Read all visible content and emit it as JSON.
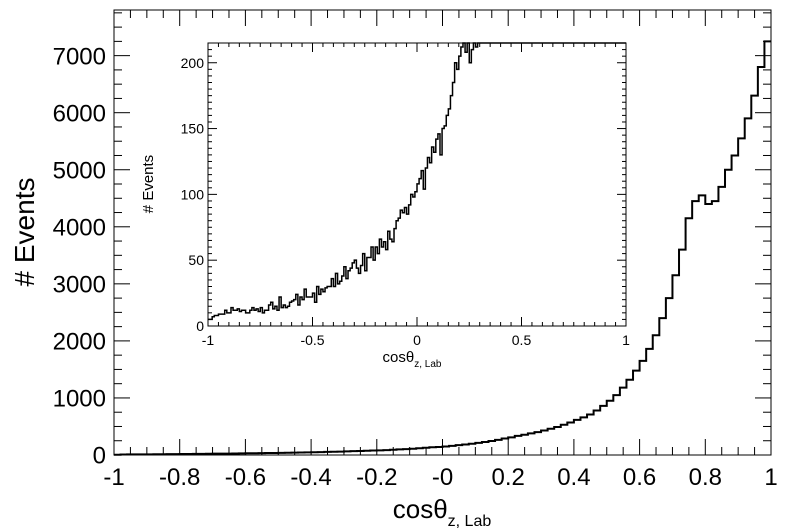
{
  "chart_data": [
    {
      "type": "histogram",
      "xlabel_main": "cosθ",
      "xlabel_sub": "z, Lab",
      "ylabel": "# Events",
      "xlim": [
        -1,
        1
      ],
      "ylim": [
        0,
        7800
      ],
      "x_ticks": [
        -1,
        -0.8,
        -0.6,
        -0.4,
        -0.2,
        0,
        0.2,
        0.4,
        0.6,
        0.8,
        1
      ],
      "x_tick_labels": [
        "-1",
        "-0.8",
        "-0.6",
        "-0.4",
        "-0.2",
        "-0",
        "0.2",
        "0.4",
        "0.6",
        "0.8",
        "1"
      ],
      "y_ticks": [
        0,
        1000,
        2000,
        3000,
        4000,
        5000,
        6000,
        7000
      ],
      "y_tick_labels": [
        "0",
        "1000",
        "2000",
        "3000",
        "4000",
        "5000",
        "6000",
        "7000"
      ],
      "bin_centers": [
        -0.99,
        -0.97,
        -0.95,
        -0.93,
        -0.91,
        -0.89,
        -0.87,
        -0.85,
        -0.83,
        -0.81,
        -0.79,
        -0.77,
        -0.75,
        -0.73,
        -0.71,
        -0.69,
        -0.67,
        -0.65,
        -0.63,
        -0.61,
        -0.59,
        -0.57,
        -0.55,
        -0.53,
        -0.51,
        -0.49,
        -0.47,
        -0.45,
        -0.43,
        -0.41,
        -0.39,
        -0.37,
        -0.35,
        -0.33,
        -0.31,
        -0.29,
        -0.27,
        -0.25,
        -0.23,
        -0.21,
        -0.19,
        -0.17,
        -0.15,
        -0.13,
        -0.11,
        -0.09,
        -0.07,
        -0.05,
        -0.03,
        -0.01,
        0.01,
        0.03,
        0.05,
        0.07,
        0.09,
        0.11,
        0.13,
        0.15,
        0.17,
        0.19,
        0.21,
        0.23,
        0.25,
        0.27,
        0.29,
        0.31,
        0.33,
        0.35,
        0.37,
        0.39,
        0.41,
        0.43,
        0.45,
        0.47,
        0.49,
        0.51,
        0.53,
        0.55,
        0.57,
        0.59,
        0.61,
        0.63,
        0.65,
        0.67,
        0.69,
        0.71,
        0.73,
        0.75,
        0.77,
        0.79,
        0.81,
        0.83,
        0.85,
        0.87,
        0.89,
        0.91,
        0.93,
        0.95,
        0.97,
        0.99
      ],
      "values": [
        5,
        8,
        10,
        10,
        12,
        12,
        14,
        14,
        16,
        15,
        18,
        18,
        20,
        20,
        22,
        24,
        25,
        25,
        27,
        28,
        30,
        30,
        32,
        34,
        36,
        38,
        40,
        42,
        44,
        46,
        48,
        50,
        54,
        57,
        60,
        64,
        68,
        70,
        74,
        78,
        82,
        86,
        92,
        98,
        104,
        110,
        118,
        126,
        135,
        140,
        150,
        160,
        172,
        185,
        198,
        212,
        228,
        245,
        265,
        290,
        310,
        335,
        355,
        380,
        400,
        430,
        460,
        490,
        530,
        570,
        615,
        660,
        710,
        780,
        860,
        950,
        1050,
        1180,
        1320,
        1480,
        1650,
        1860,
        2100,
        2400,
        2750,
        3150,
        3600,
        4150,
        4450,
        4550,
        4400,
        4450,
        4700,
        5000,
        5250,
        5550,
        5900,
        6300,
        6800,
        7250
      ]
    },
    {
      "type": "histogram",
      "xlabel_main": "cosθ",
      "xlabel_sub": "z, Lab",
      "ylabel": "# Events",
      "xlim": [
        -1,
        1
      ],
      "ylim": [
        0,
        215
      ],
      "x_ticks": [
        -1,
        -0.5,
        0,
        0.5,
        1
      ],
      "x_tick_labels": [
        "-1",
        "-0.5",
        "0",
        "0.5",
        "1"
      ],
      "y_ticks": [
        0,
        50,
        100,
        150,
        200
      ],
      "y_tick_labels": [
        "0",
        "50",
        "100",
        "150",
        "200"
      ],
      "x_start": -1.0,
      "bin_width": 0.01,
      "values": [
        5,
        5,
        7,
        8,
        8,
        9,
        9,
        9,
        12,
        10,
        10,
        14,
        12,
        12,
        13,
        11,
        12,
        12,
        10,
        10,
        12,
        14,
        12,
        13,
        11,
        14,
        10,
        12,
        12,
        16,
        18,
        13,
        15,
        12,
        22,
        14,
        16,
        14,
        15,
        18,
        19,
        20,
        24,
        16,
        22,
        20,
        28,
        22,
        22,
        22,
        25,
        18,
        30,
        24,
        28,
        26,
        29,
        30,
        30,
        36,
        30,
        40,
        32,
        34,
        38,
        45,
        36,
        42,
        44,
        48,
        50,
        44,
        40,
        46,
        55,
        42,
        52,
        52,
        60,
        50,
        60,
        55,
        66,
        60,
        64,
        58,
        72,
        66,
        64,
        74,
        80,
        82,
        88,
        86,
        90,
        85,
        92,
        100,
        98,
        102,
        108,
        112,
        118,
        104,
        120,
        128,
        124,
        136,
        132,
        142,
        146,
        130,
        150,
        152,
        160,
        165,
        175,
        185,
        200,
        195,
        205,
        212,
        215,
        208,
        215,
        200,
        210,
        215,
        212,
        215,
        215,
        215,
        215,
        215,
        215,
        215,
        215,
        215,
        215,
        215,
        215,
        215,
        215,
        215,
        215,
        215,
        215,
        215,
        215,
        215,
        215,
        215,
        215,
        215,
        215,
        215,
        215,
        215,
        215,
        215,
        215,
        215,
        215,
        215,
        215,
        215,
        215,
        215,
        215,
        215,
        215,
        215,
        215,
        215,
        215,
        215,
        215,
        215,
        215,
        215,
        215,
        215,
        215,
        215,
        215,
        215,
        215,
        215,
        215,
        215,
        215,
        215,
        215,
        215,
        215,
        215,
        215,
        215,
        215,
        215
      ]
    }
  ]
}
